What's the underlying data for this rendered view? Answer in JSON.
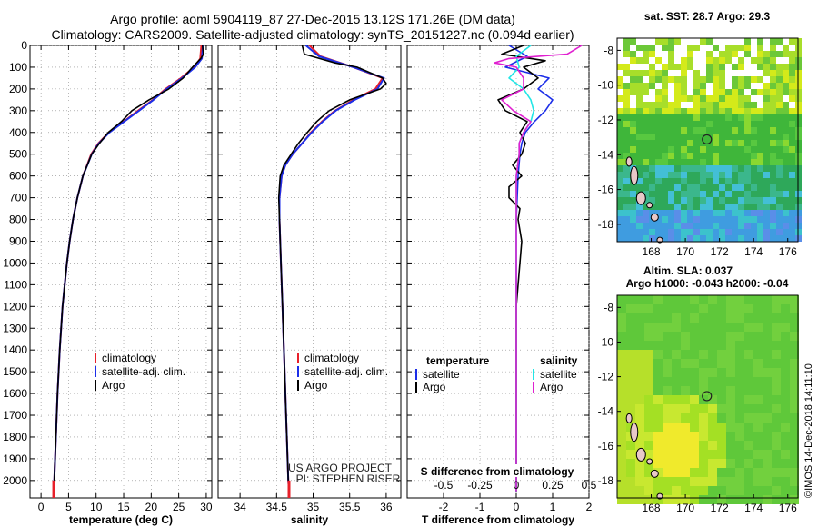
{
  "header": {
    "line1": "Argo profile: aoml 5904119_87 27-Dec-2015 13.12S 171.26E (DM data)",
    "line2": "Climatology: CARS2009. Satellite-adjusted climatology: synTS_20151227.nc (0.094d earlier)"
  },
  "colors": {
    "climatology": "#e8202a",
    "satellite": "#1c2ee8",
    "argo": "#000000",
    "s_satellite": "#22e6e6",
    "s_argo": "#e020d0"
  },
  "depth_ticks": [
    "0",
    "100",
    "200",
    "300",
    "400",
    "500",
    "600",
    "700",
    "800",
    "900",
    "1000",
    "1100",
    "1200",
    "1300",
    "1400",
    "1500",
    "1600",
    "1700",
    "1800",
    "1900",
    "2000"
  ],
  "chart_data": [
    {
      "type": "line",
      "xlabel": "temperature (deg C)",
      "xlim": [
        -2,
        31
      ],
      "ylim": [
        2080,
        0
      ],
      "xticks": [
        "0",
        "5",
        "10",
        "15",
        "20",
        "25",
        "30"
      ],
      "xtick_values": [
        0,
        5,
        10,
        15,
        20,
        25,
        30
      ],
      "grid": true,
      "legend": [
        "climatology",
        "satellite-adj. clim.",
        "Argo"
      ],
      "series": [
        {
          "name": "climatology",
          "depth": [
            0,
            60,
            100,
            150,
            200,
            250,
            300,
            350,
            400,
            450,
            500,
            600,
            700,
            800,
            900,
            1000,
            1200,
            1400,
            1600,
            1800,
            2000,
            2050
          ],
          "values": [
            29.1,
            28.9,
            27.8,
            25.4,
            22.6,
            20.3,
            17.6,
            15.0,
            12.3,
            10.4,
            9.1,
            7.6,
            6.6,
            5.8,
            5.2,
            4.7,
            3.9,
            3.4,
            3.0,
            2.7,
            2.4,
            2.3
          ]
        },
        {
          "name": "satellite-adj. clim.",
          "depth": [
            0,
            60,
            100,
            150,
            200,
            250,
            300,
            350,
            400,
            450,
            500,
            600,
            700,
            800,
            900,
            1000,
            1200,
            1400,
            1600,
            1800,
            2000,
            2050
          ],
          "values": [
            29.4,
            29.2,
            28.0,
            25.6,
            22.8,
            20.4,
            17.8,
            15.1,
            12.4,
            10.5,
            9.2,
            7.6,
            6.6,
            5.8,
            5.2,
            4.7,
            3.9,
            3.4,
            3.0,
            2.7,
            2.4,
            2.3
          ]
        },
        {
          "name": "Argo",
          "depth": [
            0,
            40,
            60,
            100,
            150,
            200,
            250,
            300,
            350,
            400,
            450,
            500,
            600,
            700,
            800,
            900,
            1000,
            1200,
            1400,
            1600,
            1800,
            2000,
            2030
          ],
          "values": [
            29.3,
            29.5,
            29.0,
            27.5,
            25.8,
            23.2,
            19.6,
            16.5,
            14.6,
            12.2,
            10.6,
            9.2,
            7.6,
            6.6,
            5.8,
            5.2,
            4.7,
            3.9,
            3.4,
            3.0,
            2.7,
            2.4,
            2.3
          ]
        }
      ]
    },
    {
      "type": "line",
      "xlabel": "salinity",
      "xlim": [
        33.7,
        36.2
      ],
      "ylim": [
        2080,
        0
      ],
      "xticks": [
        "34",
        "34.5",
        "35",
        "35.5",
        "36"
      ],
      "xtick_values": [
        34,
        34.5,
        35,
        35.5,
        36
      ],
      "grid": true,
      "legend": [
        "climatology",
        "satellite-adj. clim.",
        "Argo"
      ],
      "annotation": [
        "US ARGO PROJECT",
        "PI: STEPHEN RISER"
      ],
      "series": [
        {
          "name": "climatology",
          "depth": [
            0,
            50,
            100,
            150,
            200,
            250,
            300,
            350,
            400,
            450,
            500,
            550,
            600,
            700,
            800,
            900,
            1000,
            1200,
            1400,
            1600,
            1800,
            2000,
            2050
          ],
          "values": [
            34.95,
            35.1,
            35.55,
            35.95,
            35.85,
            35.55,
            35.3,
            35.12,
            34.97,
            34.85,
            34.72,
            34.62,
            34.57,
            34.54,
            34.54,
            34.55,
            34.56,
            34.58,
            34.6,
            34.62,
            34.64,
            34.66,
            34.67
          ]
        },
        {
          "name": "satellite-adj. clim.",
          "depth": [
            0,
            50,
            100,
            150,
            200,
            250,
            300,
            350,
            400,
            450,
            500,
            550,
            600,
            700,
            800,
            900,
            1000,
            1200,
            1400,
            1600,
            1800,
            2000,
            2050
          ],
          "values": [
            34.9,
            35.08,
            35.55,
            35.97,
            35.88,
            35.57,
            35.31,
            35.13,
            34.98,
            34.85,
            34.72,
            34.62,
            34.57,
            34.54,
            34.54,
            34.55,
            34.56,
            34.58,
            34.6,
            34.62,
            34.64,
            34.66,
            34.67
          ]
        },
        {
          "name": "Argo",
          "depth": [
            0,
            40,
            80,
            100,
            150,
            175,
            200,
            250,
            300,
            350,
            400,
            450,
            500,
            550,
            600,
            700,
            800,
            900,
            1000,
            1200,
            1400,
            1600,
            1800,
            2000,
            2030
          ],
          "values": [
            34.85,
            34.88,
            35.3,
            35.6,
            35.95,
            36.0,
            35.92,
            35.5,
            35.22,
            35.05,
            34.92,
            34.8,
            34.7,
            34.6,
            34.55,
            34.53,
            34.54,
            34.55,
            34.56,
            34.58,
            34.6,
            34.62,
            34.64,
            34.66,
            34.67
          ]
        }
      ]
    },
    {
      "type": "line",
      "xlabel": "T difference from climatology",
      "xlabel2": "S difference from climatology",
      "xlim": [
        -3,
        2
      ],
      "ylim": [
        2080,
        0
      ],
      "xticks": [
        "-2",
        "-1",
        "0",
        "1",
        "2"
      ],
      "xtick_values": [
        -2,
        -1,
        0,
        1,
        2
      ],
      "s_xticks": [
        "-0.5",
        "-0.25",
        "0",
        "0.25",
        "0.5"
      ],
      "s_xtick_values": [
        -0.5,
        -0.25,
        0,
        0.25,
        0.5
      ],
      "grid": true,
      "legend_t_title": "temperature",
      "legend_s_title": "salinity",
      "legend": [
        "satellite",
        "Argo",
        "satellite",
        "Argo"
      ],
      "series": [
        {
          "name": "T satellite",
          "depth": [
            0,
            50,
            100,
            150,
            200,
            250,
            300,
            350,
            400,
            450,
            500,
            600,
            800,
            1000,
            1500,
            2000,
            2050
          ],
          "values": [
            -0.2,
            0.3,
            -0.3,
            0.9,
            0.6,
            1.0,
            0.8,
            0.5,
            0.25,
            0.15,
            0.1,
            0.05,
            0.0,
            0.0,
            0.0,
            0.0,
            0.0
          ]
        },
        {
          "name": "T Argo",
          "depth": [
            0,
            40,
            70,
            100,
            150,
            200,
            250,
            300,
            350,
            400,
            450,
            500,
            550,
            600,
            650,
            700,
            750,
            800,
            900,
            1000,
            1100,
            1200,
            1500,
            2000,
            2050
          ],
          "values": [
            0.2,
            -0.4,
            0.8,
            0.2,
            0.6,
            0.2,
            -0.5,
            -0.3,
            0.3,
            0.1,
            0.25,
            0.15,
            -0.1,
            0.15,
            -0.2,
            -0.2,
            0.1,
            0.05,
            0.15,
            0.1,
            0.05,
            0.0,
            0.0,
            0.0,
            0.0
          ]
        },
        {
          "name": "S satellite",
          "depth": [
            0,
            50,
            100,
            150,
            200,
            250,
            300,
            350,
            400,
            450,
            500,
            600,
            800,
            1000,
            1500,
            2000,
            2050
          ],
          "values": [
            0.1,
            0.0,
            0.02,
            -0.05,
            0.05,
            0.1,
            0.12,
            0.1,
            0.05,
            0.02,
            0.02,
            0.0,
            0.0,
            0.0,
            0.0,
            0.0,
            0.0
          ]
        },
        {
          "name": "S Argo",
          "depth": [
            0,
            40,
            60,
            80,
            100,
            150,
            200,
            250,
            300,
            350,
            400,
            450,
            500,
            600,
            800,
            1000,
            1500,
            2000,
            2050
          ],
          "values": [
            0.45,
            0.35,
            -0.05,
            -0.15,
            0.0,
            0.05,
            0.05,
            -0.1,
            -0.02,
            0.1,
            0.05,
            0.02,
            0.02,
            0.0,
            0.0,
            0.0,
            0.0,
            0.0,
            0.0
          ]
        }
      ]
    },
    {
      "type": "heatmap",
      "title": "sat. SST: 28.7 Argo: 29.3",
      "xticks": [
        "168",
        "170",
        "172",
        "174",
        "176"
      ],
      "yticks": [
        "-8",
        "-10",
        "-12",
        "-14",
        "-16",
        "-18"
      ],
      "float_position": {
        "lon": 171.26,
        "lat": -13.12
      }
    },
    {
      "type": "heatmap",
      "title": "Altim. SLA: 0.037",
      "subtitle": "Argo h1000: -0.043 h2000: -0.04",
      "xticks": [
        "168",
        "170",
        "172",
        "174",
        "176"
      ],
      "yticks": [
        "-8",
        "-10",
        "-12",
        "-14",
        "-16",
        "-18"
      ],
      "float_position": {
        "lon": 171.26,
        "lat": -13.12
      }
    }
  ],
  "stamp": "©IMOS 14-Dec-2018 14:11:10"
}
